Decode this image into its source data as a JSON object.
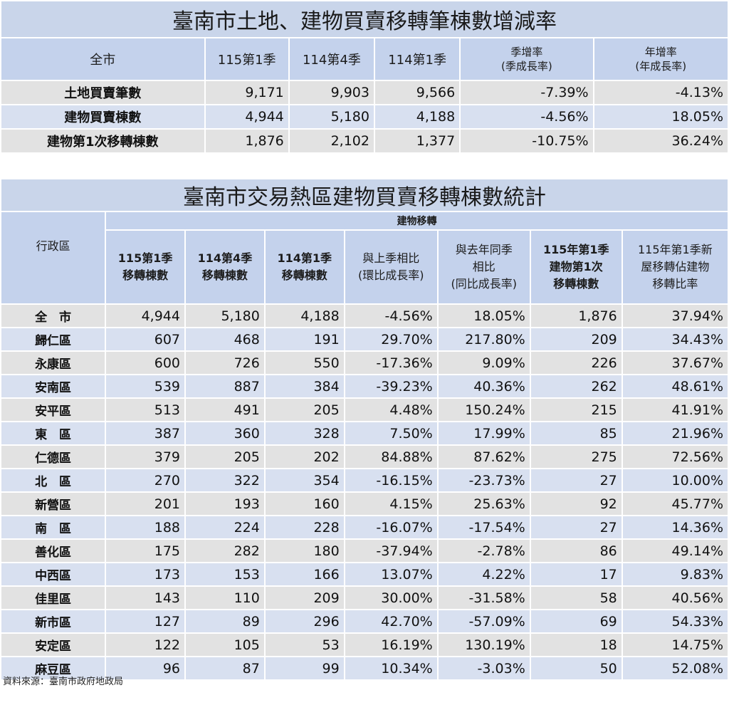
{
  "summary": {
    "title": "臺南市土地、建物買賣移轉筆棟數增減率",
    "headers": [
      "全市",
      "115第1季",
      "114第4季",
      "114第1季"
    ],
    "qoq_header": [
      "季增率",
      "(季成長率)"
    ],
    "yoy_header": [
      "年增率",
      "(年成長率)"
    ],
    "rows": [
      {
        "label": "土地買賣筆數",
        "v1": "9,171",
        "v2": "9,903",
        "v3": "9,566",
        "qoq": "-7.39%",
        "yoy": "-4.13%"
      },
      {
        "label": "建物買賣棟數",
        "v1": "4,944",
        "v2": "5,180",
        "v3": "4,188",
        "qoq": "-4.56%",
        "yoy": "18.05%"
      },
      {
        "label": "建物第1次移轉棟數",
        "v1": "1,876",
        "v2": "2,102",
        "v3": "1,377",
        "qoq": "-10.75%",
        "yoy": "36.24%"
      }
    ]
  },
  "districts": {
    "title": "臺南市交易熱區建物買賣移轉棟數統計",
    "district_header": "行政區",
    "group_header": "建物移轉",
    "col_headers": [
      [
        "115第1季",
        "移轉棟數"
      ],
      [
        "114第4季",
        "移轉棟數"
      ],
      [
        "114第1季",
        "移轉棟數"
      ],
      [
        "與上季相比",
        "(環比成長率)"
      ],
      [
        "與去年同季",
        "相比",
        "(同比成長率)"
      ],
      [
        "115年第1季",
        "建物第1次",
        "移轉棟數"
      ],
      [
        "115年第1季新",
        "屋移轉佔建物",
        "移轉比率"
      ]
    ],
    "rows": [
      {
        "name": "全　市",
        "a": "4,944",
        "b": "5,180",
        "c": "4,188",
        "qoq": "-4.56%",
        "yoy": "18.05%",
        "first": "1,876",
        "ratio": "37.94%"
      },
      {
        "name": "歸仁區",
        "a": "607",
        "b": "468",
        "c": "191",
        "qoq": "29.70%",
        "yoy": "217.80%",
        "first": "209",
        "ratio": "34.43%"
      },
      {
        "name": "永康區",
        "a": "600",
        "b": "726",
        "c": "550",
        "qoq": "-17.36%",
        "yoy": "9.09%",
        "first": "226",
        "ratio": "37.67%"
      },
      {
        "name": "安南區",
        "a": "539",
        "b": "887",
        "c": "384",
        "qoq": "-39.23%",
        "yoy": "40.36%",
        "first": "262",
        "ratio": "48.61%"
      },
      {
        "name": "安平區",
        "a": "513",
        "b": "491",
        "c": "205",
        "qoq": "4.48%",
        "yoy": "150.24%",
        "first": "215",
        "ratio": "41.91%"
      },
      {
        "name": "東　區",
        "a": "387",
        "b": "360",
        "c": "328",
        "qoq": "7.50%",
        "yoy": "17.99%",
        "first": "85",
        "ratio": "21.96%"
      },
      {
        "name": "仁德區",
        "a": "379",
        "b": "205",
        "c": "202",
        "qoq": "84.88%",
        "yoy": "87.62%",
        "first": "275",
        "ratio": "72.56%"
      },
      {
        "name": "北　區",
        "a": "270",
        "b": "322",
        "c": "354",
        "qoq": "-16.15%",
        "yoy": "-23.73%",
        "first": "27",
        "ratio": "10.00%"
      },
      {
        "name": "新營區",
        "a": "201",
        "b": "193",
        "c": "160",
        "qoq": "4.15%",
        "yoy": "25.63%",
        "first": "92",
        "ratio": "45.77%"
      },
      {
        "name": "南　區",
        "a": "188",
        "b": "224",
        "c": "228",
        "qoq": "-16.07%",
        "yoy": "-17.54%",
        "first": "27",
        "ratio": "14.36%"
      },
      {
        "name": "善化區",
        "a": "175",
        "b": "282",
        "c": "180",
        "qoq": "-37.94%",
        "yoy": "-2.78%",
        "first": "86",
        "ratio": "49.14%"
      },
      {
        "name": "中西區",
        "a": "173",
        "b": "153",
        "c": "166",
        "qoq": "13.07%",
        "yoy": "4.22%",
        "first": "17",
        "ratio": "9.83%"
      },
      {
        "name": "佳里區",
        "a": "143",
        "b": "110",
        "c": "209",
        "qoq": "30.00%",
        "yoy": "-31.58%",
        "first": "58",
        "ratio": "40.56%"
      },
      {
        "name": "新市區",
        "a": "127",
        "b": "89",
        "c": "296",
        "qoq": "42.70%",
        "yoy": "-57.09%",
        "first": "69",
        "ratio": "54.33%"
      },
      {
        "name": "安定區",
        "a": "122",
        "b": "105",
        "c": "53",
        "qoq": "16.19%",
        "yoy": "130.19%",
        "first": "18",
        "ratio": "14.75%"
      },
      {
        "name": "麻豆區",
        "a": "96",
        "b": "87",
        "c": "99",
        "qoq": "10.34%",
        "yoy": "-3.03%",
        "first": "50",
        "ratio": "52.08%"
      }
    ]
  },
  "source": "資料來源：臺南市政府地政局"
}
